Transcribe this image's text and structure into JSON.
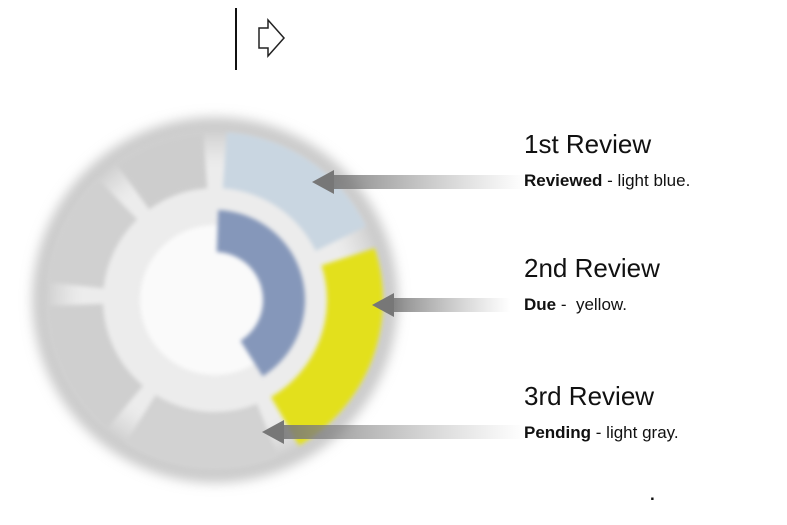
{
  "labels": [
    {
      "title": "1st Review",
      "status": "Reviewed",
      "description": " - light blue."
    },
    {
      "title": "2nd Review",
      "status": "Due",
      "description": " -  yellow."
    },
    {
      "title": "3rd Review",
      "status": "Pending",
      "description": " - light gray."
    }
  ],
  "footnote": "."
}
